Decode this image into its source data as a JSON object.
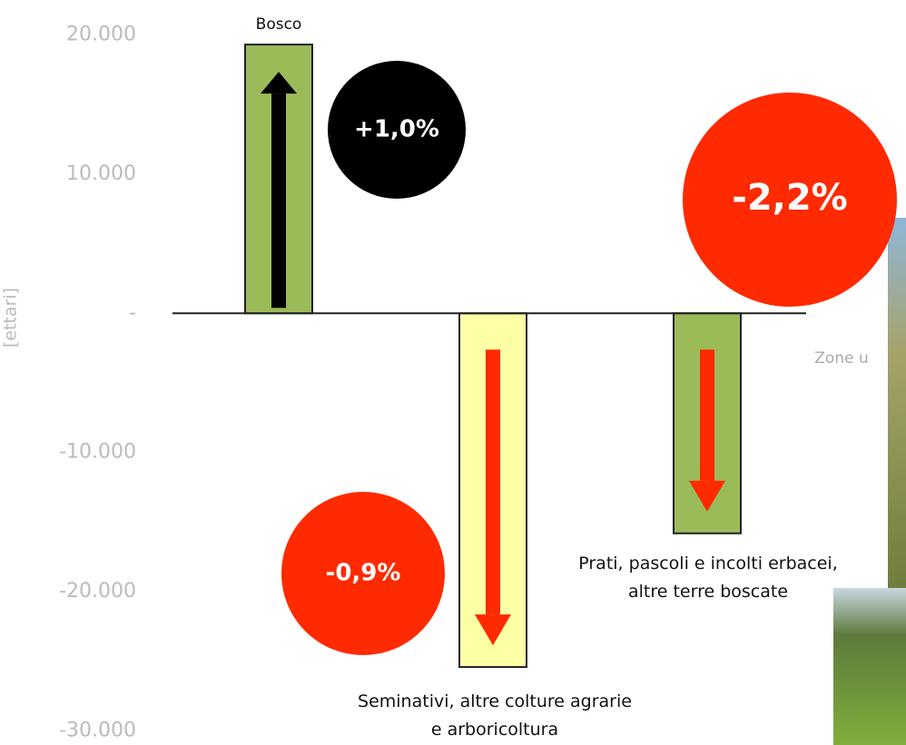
{
  "chart_data": {
    "type": "bar",
    "y_label": "[ettari]",
    "categories": [
      "Bosco",
      "Seminativi, altre colture agrarie e arboricoltura",
      "Prati, pascoli e incolti erbacei, altre terre boscate",
      "Zone u"
    ],
    "values": [
      19300,
      -25400,
      -15800,
      null
    ],
    "colors": [
      "#9bbb59",
      "#ffffa6",
      "#9bbb59",
      "#9bbb59"
    ],
    "arrow_colors": [
      "#000000",
      "#ff2a00",
      "#ff2a00",
      "#ff2a00"
    ],
    "ylim": [
      -31000,
      22500
    ],
    "yticks": [
      {
        "value": 20000,
        "label": "20.000"
      },
      {
        "value": 10000,
        "label": "10.000"
      },
      {
        "value": 0,
        "label": "-"
      },
      {
        "value": -10000,
        "label": "-10.000"
      },
      {
        "value": -20000,
        "label": "-20.000"
      },
      {
        "value": -30000,
        "label": "-30.000"
      }
    ],
    "annotations": [
      {
        "text": "+1,0%",
        "color": "#000000"
      },
      {
        "text": "-2,2%",
        "color": "#ff2a00"
      },
      {
        "text": "-0,9%",
        "color": "#ff2a00"
      }
    ]
  }
}
